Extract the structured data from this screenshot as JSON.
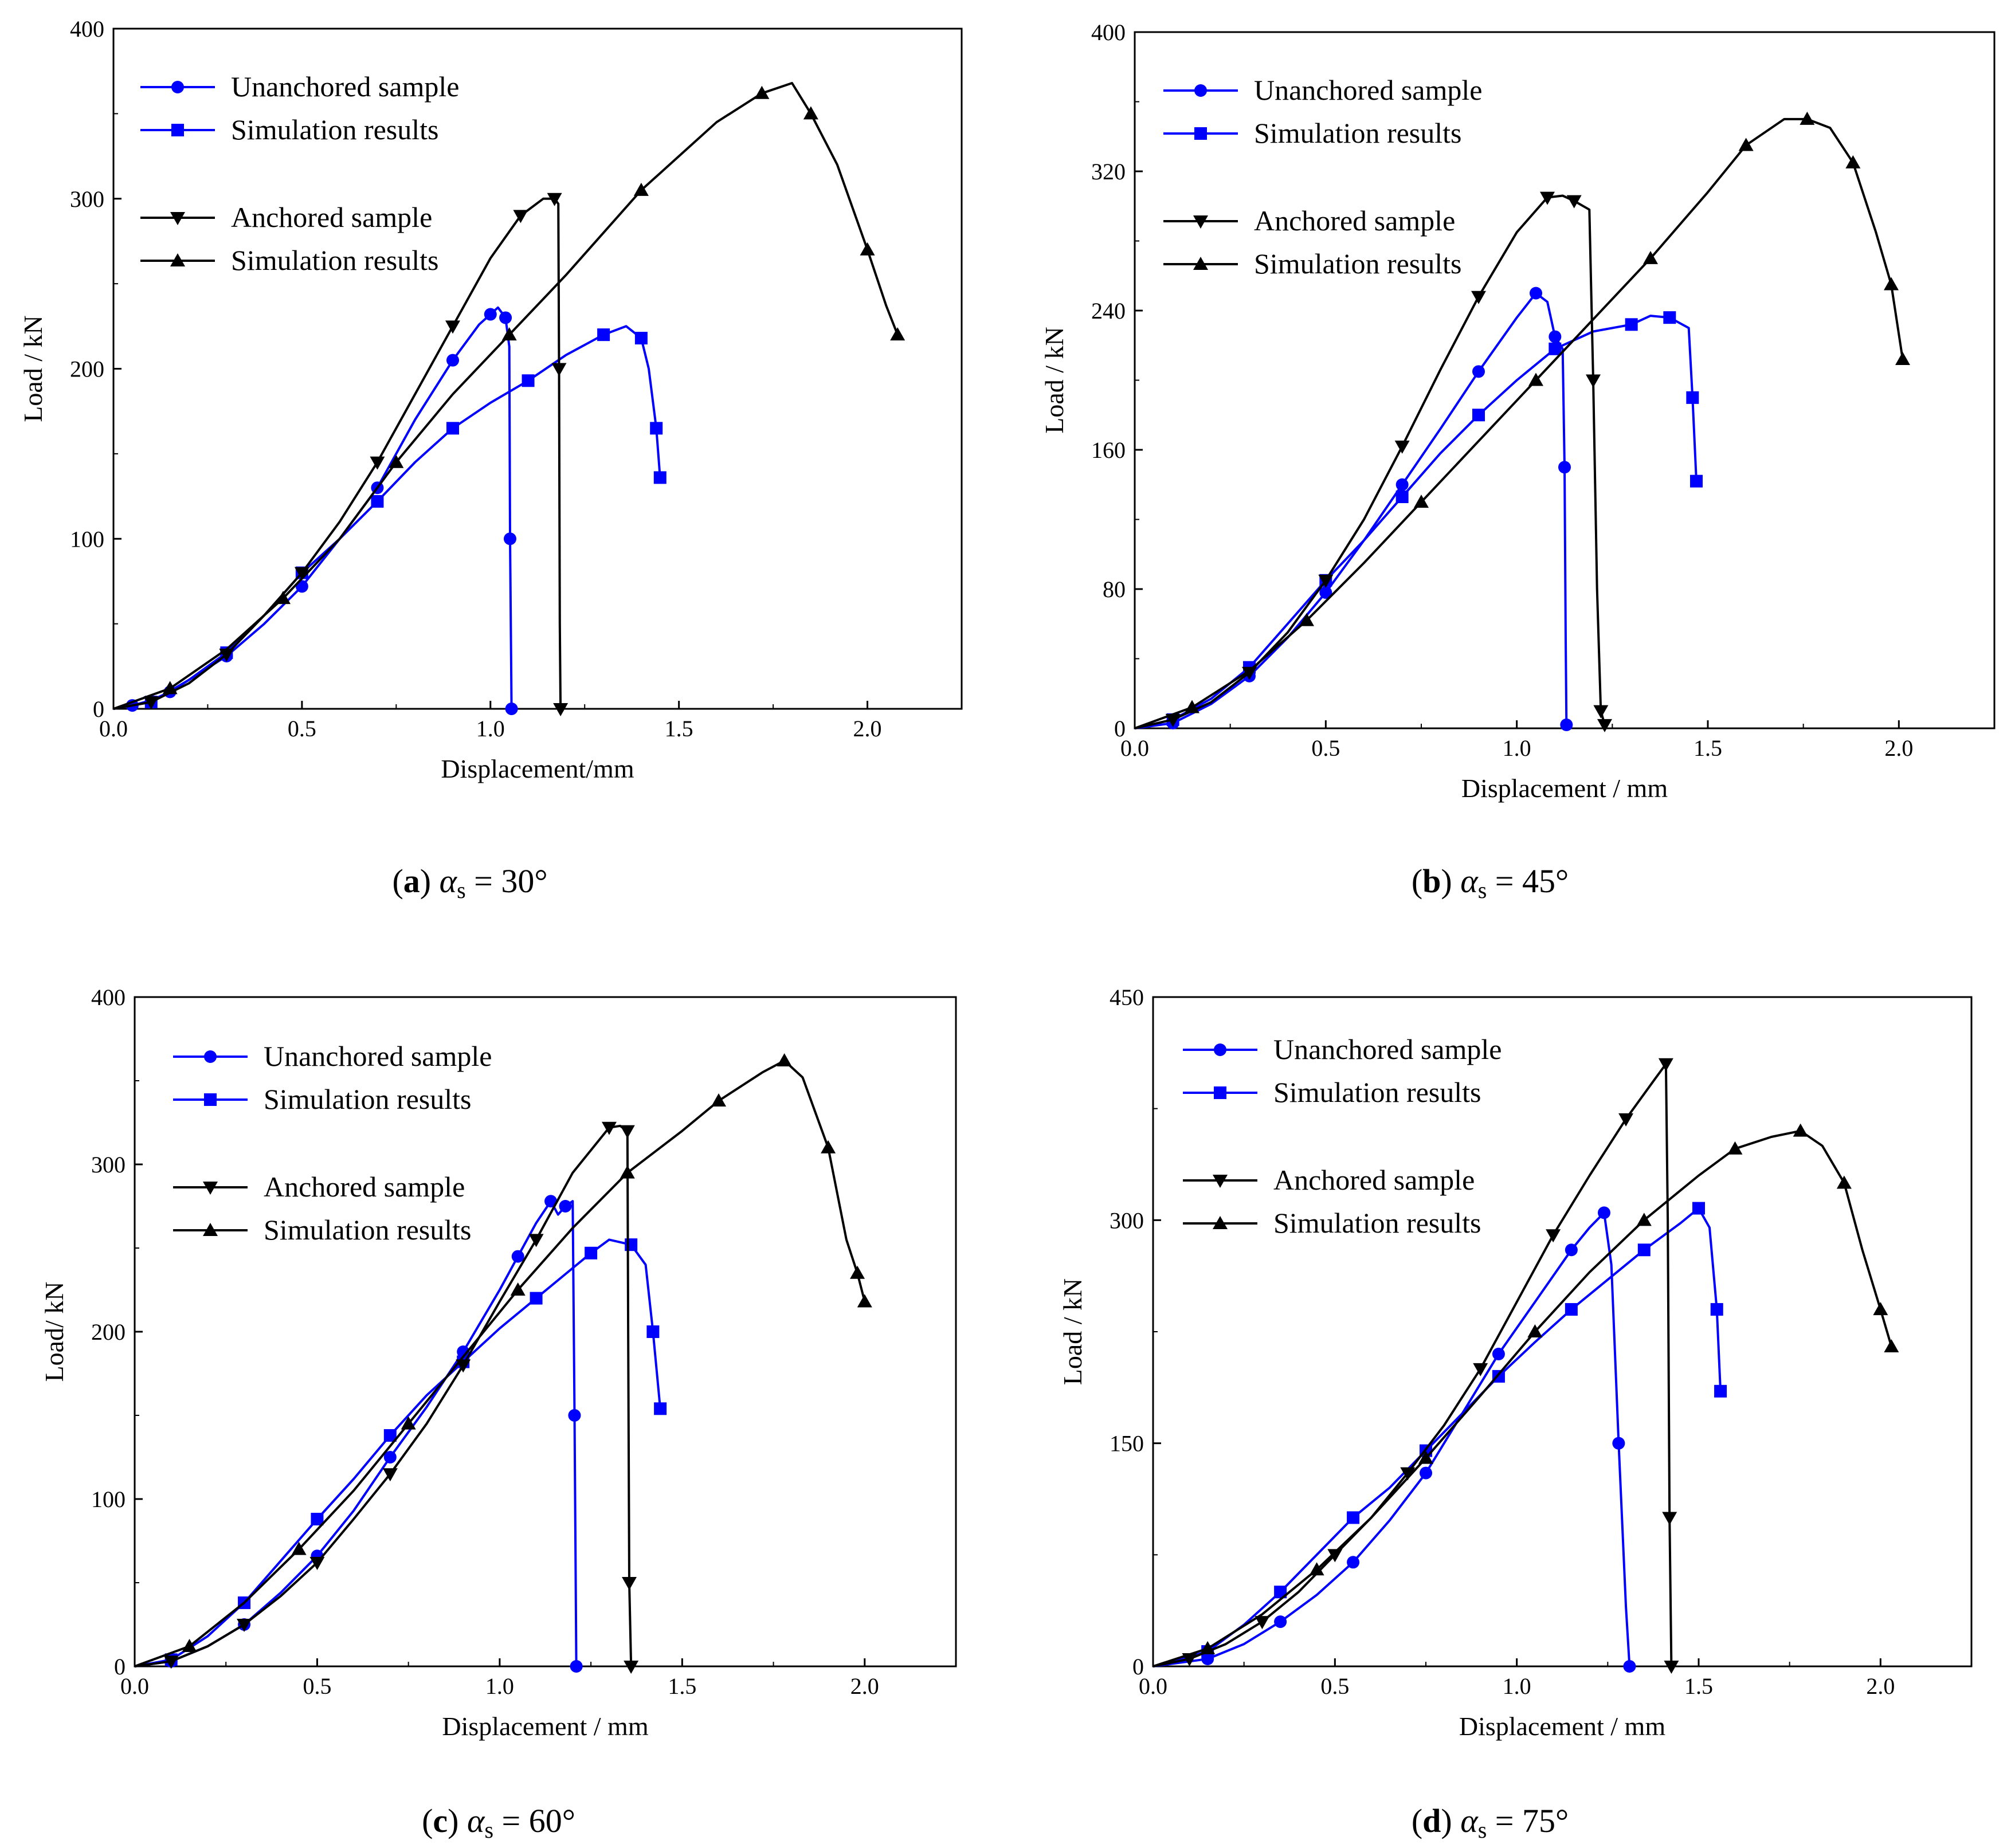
{
  "figure": {
    "colors": {
      "unanchored": "#0000ff",
      "anchored": "#000000"
    },
    "legend_entries": [
      "Unanchored sample",
      "Simulation results",
      "Anchored sample",
      "Simulation results"
    ]
  },
  "chart_data": [
    {
      "type": "line",
      "panel": "a",
      "caption": {
        "label": "a",
        "symbol": "α",
        "subscript": "s",
        "value": "= 30°"
      },
      "xlabel": "Displacement/mm",
      "ylabel": "Load / kN",
      "xlim": [
        0,
        2.25
      ],
      "ylim": [
        0,
        400
      ],
      "xticks": [
        "0.0",
        "0.5",
        "1.0",
        "1.5",
        "2.0"
      ],
      "yticks": [
        "0",
        "100",
        "200",
        "300",
        "400"
      ],
      "series": [
        {
          "name": "Unanchored sample",
          "color": "#0000ff",
          "marker": "circle",
          "x": [
            0,
            0.05,
            0.1,
            0.15,
            0.2,
            0.3,
            0.4,
            0.5,
            0.6,
            0.7,
            0.8,
            0.9,
            0.97,
            1.0,
            1.02,
            1.04,
            1.05,
            1.052,
            1.056
          ],
          "y": [
            0,
            2,
            5,
            10,
            17,
            31,
            50,
            72,
            100,
            130,
            170,
            205,
            226,
            232,
            236,
            230,
            213,
            100,
            0
          ]
        },
        {
          "name": "Simulation results",
          "color": "#0000ff",
          "marker": "square",
          "x": [
            0,
            0.1,
            0.2,
            0.3,
            0.4,
            0.5,
            0.6,
            0.7,
            0.8,
            0.9,
            1.0,
            1.1,
            1.2,
            1.3,
            1.36,
            1.4,
            1.42,
            1.44,
            1.45
          ],
          "y": [
            0,
            4,
            17,
            33,
            55,
            80,
            100,
            122,
            145,
            165,
            180,
            193,
            208,
            220,
            225,
            218,
            200,
            165,
            136
          ]
        },
        {
          "name": "Anchored sample",
          "color": "#000000",
          "marker": "triangle-down",
          "x": [
            0,
            0.1,
            0.2,
            0.3,
            0.4,
            0.5,
            0.6,
            0.7,
            0.8,
            0.9,
            1.0,
            1.08,
            1.14,
            1.17,
            1.18,
            1.182,
            1.184,
            1.186
          ],
          "y": [
            0,
            4,
            15,
            32,
            55,
            80,
            110,
            145,
            185,
            225,
            265,
            290,
            300,
            300,
            297,
            200,
            50,
            0
          ]
        },
        {
          "name": "Simulation results",
          "color": "#000000",
          "marker": "triangle-up",
          "x": [
            0,
            0.15,
            0.3,
            0.45,
            0.6,
            0.75,
            0.9,
            1.05,
            1.2,
            1.4,
            1.6,
            1.72,
            1.8,
            1.85,
            1.92,
            2.0,
            2.05,
            2.08
          ],
          "y": [
            0,
            12,
            35,
            65,
            100,
            145,
            185,
            220,
            255,
            305,
            345,
            362,
            368,
            350,
            320,
            270,
            237,
            220
          ]
        }
      ]
    },
    {
      "type": "line",
      "panel": "b",
      "caption": {
        "label": "b",
        "symbol": "α",
        "subscript": "s",
        "value": "= 45°"
      },
      "xlabel": "Displacement / mm",
      "ylabel": "Load / kN",
      "xlim": [
        0,
        2.25
      ],
      "ylim": [
        0,
        400
      ],
      "xticks": [
        "0.0",
        "0.5",
        "1.0",
        "1.5",
        "2.0"
      ],
      "yticks": [
        "0",
        "80",
        "160",
        "240",
        "320",
        "400"
      ],
      "series": [
        {
          "name": "Unanchored sample",
          "color": "#0000ff",
          "marker": "circle",
          "x": [
            0,
            0.1,
            0.2,
            0.3,
            0.4,
            0.5,
            0.6,
            0.7,
            0.8,
            0.9,
            1.0,
            1.05,
            1.08,
            1.1,
            1.12,
            1.125,
            1.128,
            1.13
          ],
          "y": [
            0,
            3,
            14,
            30,
            52,
            78,
            108,
            140,
            172,
            205,
            236,
            250,
            245,
            225,
            218,
            150,
            50,
            2
          ]
        },
        {
          "name": "Simulation results",
          "color": "#0000ff",
          "marker": "square",
          "x": [
            0,
            0.1,
            0.2,
            0.3,
            0.4,
            0.5,
            0.6,
            0.7,
            0.8,
            0.9,
            1.0,
            1.1,
            1.2,
            1.3,
            1.35,
            1.4,
            1.45,
            1.46,
            1.47
          ],
          "y": [
            0,
            5,
            17,
            35,
            60,
            85,
            108,
            133,
            158,
            180,
            200,
            218,
            228,
            232,
            237,
            236,
            230,
            190,
            142
          ]
        },
        {
          "name": "Anchored sample",
          "color": "#000000",
          "marker": "triangle-down",
          "x": [
            0,
            0.1,
            0.2,
            0.3,
            0.4,
            0.5,
            0.6,
            0.7,
            0.8,
            0.9,
            1.0,
            1.08,
            1.12,
            1.15,
            1.19,
            1.2,
            1.21,
            1.22,
            1.23
          ],
          "y": [
            0,
            5,
            15,
            32,
            55,
            85,
            120,
            162,
            206,
            248,
            285,
            305,
            306,
            303,
            298,
            200,
            80,
            10,
            2
          ]
        },
        {
          "name": "Simulation results",
          "color": "#000000",
          "marker": "triangle-up",
          "x": [
            0,
            0.15,
            0.3,
            0.45,
            0.6,
            0.75,
            0.9,
            1.05,
            1.2,
            1.35,
            1.5,
            1.6,
            1.7,
            1.76,
            1.82,
            1.88,
            1.94,
            1.98,
            2.01
          ],
          "y": [
            0,
            12,
            33,
            62,
            95,
            130,
            165,
            200,
            235,
            270,
            308,
            335,
            350,
            350,
            345,
            325,
            285,
            255,
            212
          ]
        }
      ]
    },
    {
      "type": "line",
      "panel": "c",
      "caption": {
        "label": "c",
        "symbol": "α",
        "subscript": "s",
        "value": "= 60°"
      },
      "xlabel": "Displacement / mm",
      "ylabel": "Load/ kN",
      "xlim": [
        0,
        2.25
      ],
      "ylim": [
        0,
        400
      ],
      "xticks": [
        "0.0",
        "0.5",
        "1.0",
        "1.5",
        "2.0"
      ],
      "yticks": [
        "0",
        "100",
        "200",
        "300",
        "400"
      ],
      "series": [
        {
          "name": "Unanchored sample",
          "color": "#0000ff",
          "marker": "circle",
          "x": [
            0,
            0.1,
            0.2,
            0.3,
            0.4,
            0.5,
            0.6,
            0.7,
            0.8,
            0.9,
            1.0,
            1.05,
            1.1,
            1.14,
            1.16,
            1.18,
            1.2,
            1.205,
            1.21
          ],
          "y": [
            0,
            3,
            12,
            25,
            44,
            66,
            93,
            125,
            155,
            188,
            225,
            245,
            265,
            278,
            270,
            275,
            278,
            150,
            0
          ]
        },
        {
          "name": "Simulation results",
          "color": "#0000ff",
          "marker": "square",
          "x": [
            0,
            0.1,
            0.2,
            0.3,
            0.4,
            0.5,
            0.6,
            0.7,
            0.8,
            0.9,
            1.0,
            1.1,
            1.2,
            1.25,
            1.3,
            1.36,
            1.4,
            1.42,
            1.44
          ],
          "y": [
            0,
            4,
            18,
            38,
            63,
            88,
            112,
            138,
            162,
            182,
            202,
            220,
            238,
            247,
            255,
            252,
            240,
            200,
            154
          ]
        },
        {
          "name": "Anchored sample",
          "color": "#000000",
          "marker": "triangle-down",
          "x": [
            0,
            0.1,
            0.2,
            0.3,
            0.4,
            0.5,
            0.6,
            0.7,
            0.8,
            0.9,
            1.0,
            1.1,
            1.2,
            1.3,
            1.33,
            1.35,
            1.352,
            1.355,
            1.36
          ],
          "y": [
            0,
            3,
            12,
            25,
            42,
            62,
            88,
            115,
            145,
            180,
            218,
            255,
            295,
            322,
            323,
            320,
            200,
            50,
            0
          ]
        },
        {
          "name": "Simulation results",
          "color": "#000000",
          "marker": "triangle-up",
          "x": [
            0,
            0.15,
            0.3,
            0.45,
            0.6,
            0.75,
            0.9,
            1.05,
            1.2,
            1.35,
            1.5,
            1.6,
            1.72,
            1.78,
            1.83,
            1.9,
            1.95,
            1.98,
            2.0
          ],
          "y": [
            0,
            12,
            38,
            70,
            105,
            145,
            185,
            225,
            262,
            295,
            320,
            338,
            355,
            362,
            352,
            310,
            255,
            235,
            218
          ]
        }
      ]
    },
    {
      "type": "line",
      "panel": "d",
      "caption": {
        "label": "d",
        "symbol": "α",
        "subscript": "s",
        "value": "= 75°"
      },
      "xlabel": "Displacement / mm",
      "ylabel": "Load / kN",
      "xlim": [
        0,
        2.25
      ],
      "ylim": [
        0,
        450
      ],
      "xticks": [
        "0.0",
        "0.5",
        "1.0",
        "1.5",
        "2.0"
      ],
      "yticks": [
        "0",
        "150",
        "300",
        "450"
      ],
      "series": [
        {
          "name": "Unanchored sample",
          "color": "#0000ff",
          "marker": "circle",
          "x": [
            0,
            0.15,
            0.25,
            0.35,
            0.45,
            0.55,
            0.65,
            0.75,
            0.85,
            0.95,
            1.05,
            1.15,
            1.2,
            1.24,
            1.26,
            1.28,
            1.3,
            1.31
          ],
          "y": [
            0,
            5,
            15,
            30,
            48,
            70,
            98,
            130,
            170,
            210,
            245,
            280,
            295,
            305,
            270,
            150,
            40,
            0
          ]
        },
        {
          "name": "Simulation results",
          "color": "#0000ff",
          "marker": "square",
          "x": [
            0,
            0.15,
            0.25,
            0.35,
            0.45,
            0.55,
            0.65,
            0.75,
            0.85,
            0.95,
            1.05,
            1.15,
            1.25,
            1.35,
            1.45,
            1.5,
            1.53,
            1.55,
            1.56
          ],
          "y": [
            0,
            10,
            28,
            50,
            75,
            100,
            120,
            145,
            170,
            195,
            218,
            240,
            260,
            280,
            298,
            308,
            295,
            240,
            185
          ]
        },
        {
          "name": "Anchored sample",
          "color": "#000000",
          "marker": "triangle-down",
          "x": [
            0,
            0.1,
            0.2,
            0.3,
            0.4,
            0.5,
            0.6,
            0.7,
            0.8,
            0.9,
            1.0,
            1.1,
            1.2,
            1.3,
            1.38,
            1.41,
            1.415,
            1.42,
            1.425
          ],
          "y": [
            0,
            5,
            15,
            30,
            50,
            75,
            100,
            130,
            162,
            200,
            245,
            290,
            330,
            368,
            395,
            405,
            300,
            100,
            0
          ]
        },
        {
          "name": "Simulation results",
          "color": "#000000",
          "marker": "triangle-up",
          "x": [
            0,
            0.15,
            0.3,
            0.45,
            0.6,
            0.75,
            0.9,
            1.05,
            1.2,
            1.35,
            1.5,
            1.6,
            1.7,
            1.78,
            1.84,
            1.9,
            1.95,
            2.0,
            2.03
          ],
          "y": [
            0,
            12,
            35,
            65,
            100,
            140,
            182,
            225,
            265,
            300,
            330,
            348,
            356,
            360,
            350,
            325,
            280,
            240,
            215
          ]
        }
      ]
    }
  ]
}
